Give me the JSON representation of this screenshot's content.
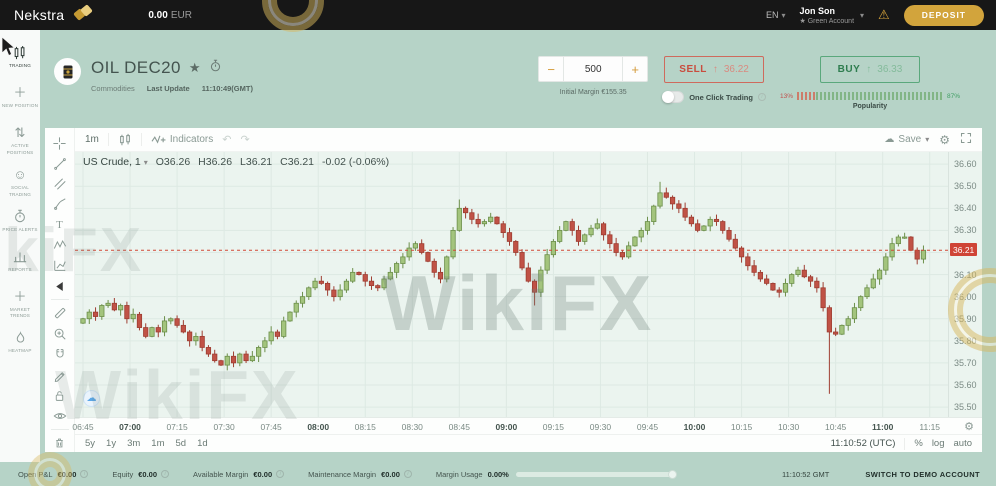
{
  "topbar": {
    "brand": "Nekstra",
    "balance": "0.00",
    "currency": "EUR",
    "language": "EN",
    "user_name": "Jon Son",
    "account_type": "Green Account",
    "deposit_label": "DEPOSIT"
  },
  "sidebar": {
    "items": [
      {
        "label": "TRADING"
      },
      {
        "label": "NEW POSITION"
      },
      {
        "label": "ACTIVE POSITIONS"
      },
      {
        "label": "SOCIAL TRADING"
      },
      {
        "label": "PRICE ALERTS"
      },
      {
        "label": "REPORTS"
      },
      {
        "label": "MARKET TRENDS"
      },
      {
        "label": "HEATMAP"
      }
    ]
  },
  "instrument": {
    "title": "OIL DEC20",
    "category": "Commodities",
    "last_update_label": "Last Update",
    "last_update_value": "11:10:49(GMT)"
  },
  "order": {
    "quantity": "500",
    "initial_margin": "Initial Margin €155.35",
    "sell_label": "SELL",
    "sell_price": "36.22",
    "buy_label": "BUY",
    "buy_price": "36.33",
    "one_click_label": "One Click Trading",
    "sell_popularity": "13%",
    "buy_popularity": "87%",
    "popularity_label": "Popularity"
  },
  "chart_toolbar": {
    "interval": "1m",
    "indicators_label": "Indicators",
    "save_label": "Save"
  },
  "legend": {
    "symbol": "US Crude, 1",
    "open": "O36.26",
    "high": "H36.26",
    "low": "L36.21",
    "close": "C36.21",
    "change": "-0.02 (-0.06%)"
  },
  "chart_data": {
    "type": "candlestick",
    "title": "US Crude, 1 minute",
    "start_time": "06:45",
    "interval_minutes": 2,
    "price_range": [
      35.455,
      36.655
    ],
    "price_axis_ticks": [
      36.6,
      36.5,
      36.4,
      36.3,
      36.2,
      36.1,
      36.0,
      35.9,
      35.8,
      35.7,
      35.6,
      35.5
    ],
    "time_ticks": [
      "06:45",
      "07:00",
      "07:15",
      "07:30",
      "07:45",
      "08:00",
      "08:15",
      "08:30",
      "08:45",
      "09:00",
      "09:15",
      "09:30",
      "09:45",
      "10:00",
      "10:15",
      "10:30",
      "10:45",
      "11:00",
      "11:15"
    ],
    "current_price": 36.21,
    "first_open": 35.88,
    "closes": [
      35.9,
      35.93,
      35.91,
      35.96,
      35.97,
      35.94,
      35.96,
      35.9,
      35.92,
      35.86,
      35.82,
      35.86,
      35.84,
      35.89,
      35.9,
      35.87,
      35.84,
      35.8,
      35.82,
      35.77,
      35.74,
      35.71,
      35.69,
      35.73,
      35.7,
      35.74,
      35.71,
      35.73,
      35.77,
      35.8,
      35.84,
      35.82,
      35.89,
      35.93,
      35.97,
      36.0,
      36.04,
      36.07,
      36.06,
      36.03,
      36.0,
      36.03,
      36.07,
      36.11,
      36.1,
      36.07,
      36.05,
      36.04,
      36.08,
      36.11,
      36.15,
      36.18,
      36.22,
      36.24,
      36.2,
      36.16,
      36.11,
      36.08,
      36.18,
      36.3,
      36.4,
      36.38,
      36.35,
      36.33,
      36.34,
      36.36,
      36.33,
      36.29,
      36.25,
      36.2,
      36.13,
      36.07,
      36.02,
      36.12,
      36.19,
      36.25,
      36.3,
      36.34,
      36.3,
      36.25,
      36.28,
      36.31,
      36.33,
      36.28,
      36.24,
      36.2,
      36.18,
      36.23,
      36.27,
      36.3,
      36.34,
      36.41,
      36.47,
      36.45,
      36.42,
      36.4,
      36.36,
      36.33,
      36.3,
      36.32,
      36.35,
      36.34,
      36.3,
      36.26,
      36.22,
      36.18,
      36.14,
      36.11,
      36.08,
      36.06,
      36.03,
      36.02,
      36.06,
      36.1,
      36.12,
      36.09,
      36.07,
      36.04,
      35.95,
      35.84,
      35.83,
      35.87,
      35.9,
      35.95,
      36.0,
      36.04,
      36.08,
      36.12,
      36.18,
      36.24,
      36.27,
      36.27,
      36.21,
      36.17,
      36.21
    ],
    "overrides": {
      "60": {
        "high": 36.44
      },
      "72": {
        "low": 35.96
      },
      "92": {
        "high": 36.52
      },
      "119": {
        "low": 35.56
      }
    },
    "colors": {
      "up": "#a3c47d",
      "up_stroke": "#6c8f4a",
      "down": "#c05246",
      "down_stroke": "#9e3d31",
      "current_line": "#d14836",
      "grid": "#dde9e3"
    }
  },
  "chart_footer": {
    "ranges": [
      "5y",
      "1y",
      "3m",
      "1m",
      "5d",
      "1d"
    ],
    "clock": "11:10:52 (UTC)",
    "scale_percent": "%",
    "scale_log": "log",
    "scale_auto": "auto"
  },
  "statusbar": {
    "items": [
      {
        "label": "Open P&L",
        "value": "€0.00"
      },
      {
        "label": "Equity",
        "value": "€0.00"
      },
      {
        "label": "Available Margin",
        "value": "€0.00"
      },
      {
        "label": "Maintenance Margin",
        "value": "€0.00"
      },
      {
        "label": "Margin Usage",
        "value": "0.00%",
        "bar": true
      }
    ],
    "time": "11:10:52 GMT",
    "switch_account_label": "SWITCH TO DEMO ACCOUNT"
  },
  "watermark": {
    "text": "WikiFX"
  },
  "drawing_tools": [
    "crosshair",
    "trend-line",
    "parallel-channel",
    "brush",
    "text",
    "xabcd-pattern",
    "forecast",
    "arrow",
    "ruler",
    "zoom-in",
    "magnet",
    "drawing-mode",
    "lock-all",
    "hide-all",
    "remove-all"
  ]
}
